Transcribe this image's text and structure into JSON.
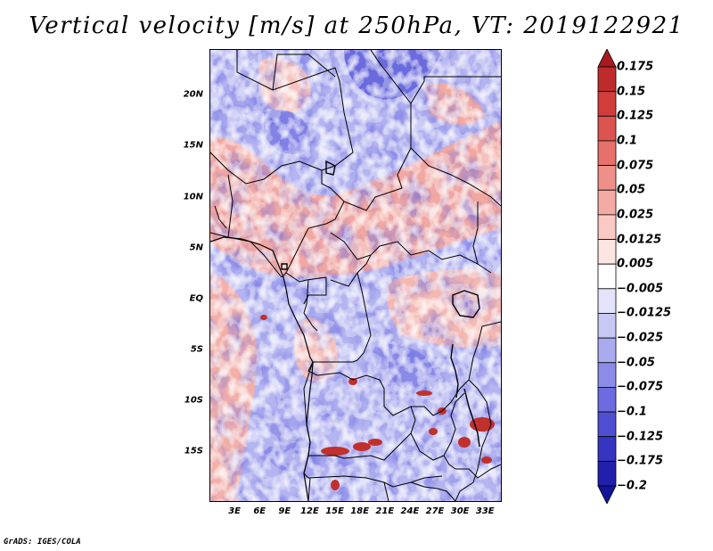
{
  "title": "Vertical velocity [m/s] at 250hPa, VT: 2019122921",
  "credit": "GrADS: IGES/COLA",
  "latitude_labels": [
    "20N",
    "15N",
    "10N",
    "5N",
    "EQ",
    "5S",
    "10S",
    "15S"
  ],
  "latitude_values": [
    20,
    15,
    10,
    5,
    0,
    -5,
    -10,
    -15
  ],
  "longitude_labels": [
    "3E",
    "6E",
    "9E",
    "12E",
    "15E",
    "18E",
    "21E",
    "24E",
    "27E",
    "30E",
    "33E"
  ],
  "longitude_values": [
    3,
    6,
    9,
    12,
    15,
    18,
    21,
    24,
    27,
    30,
    33
  ],
  "map_extent": {
    "lon_min": 0,
    "lon_max": 35,
    "lat_min": -20,
    "lat_max": 24.5
  },
  "colorbar": {
    "labels": [
      "0.175",
      "0.15",
      "0.125",
      "0.1",
      "0.075",
      "0.05",
      "0.025",
      "0.0125",
      "0.005",
      "−0.005",
      "−0.0125",
      "−0.025",
      "−0.05",
      "−0.075",
      "−0.1",
      "−0.125",
      "−0.175",
      "−0.2"
    ],
    "colors": [
      "#a81a20",
      "#bf2b2c",
      "#d03d3a",
      "#dc5450",
      "#e6706a",
      "#ee8f88",
      "#f4aba5",
      "#f9c9c4",
      "#fde6e2",
      "#ffffff",
      "#e3e3fb",
      "#c8c8f5",
      "#aaaaef",
      "#8b8be8",
      "#6c6ce0",
      "#4f4fd4",
      "#3535c2",
      "#2020ad",
      "#14149a"
    ]
  }
}
